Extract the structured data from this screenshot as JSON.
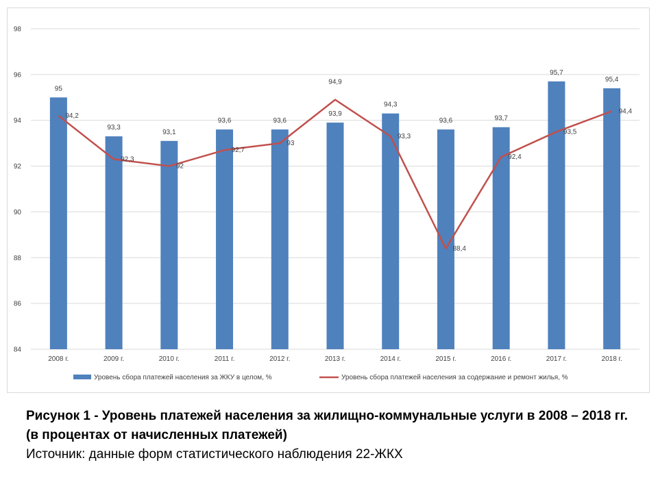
{
  "chart_data": {
    "type": "bar+line",
    "categories": [
      "2008 г.",
      "2009 г.",
      "2010 г.",
      "2011 г.",
      "2012 г.",
      "2013 г.",
      "2014 г.",
      "2015 г.",
      "2016 г.",
      "2017 г.",
      "2018 г."
    ],
    "series": [
      {
        "name": "Уровень сбора платежей населения за ЖКУ в целом, %",
        "type": "bar",
        "values": [
          95,
          93.3,
          93.1,
          93.6,
          93.6,
          93.9,
          94.3,
          93.6,
          93.7,
          95.7,
          95.4
        ],
        "labels": [
          "95",
          "93,3",
          "93,1",
          "93,6",
          "93,6",
          "93,9",
          "94,3",
          "93,6",
          "93,7",
          "95,7",
          "95,4"
        ],
        "color": "#4f81bd"
      },
      {
        "name": "Уровень сбора платежей населения за содержание и ремонт жилья, %",
        "type": "line",
        "values": [
          94.2,
          92.3,
          92,
          92.7,
          93,
          94.9,
          93.3,
          88.4,
          92.4,
          93.5,
          94.4
        ],
        "labels": [
          "94,2",
          "92,3",
          "92",
          "92,7",
          "93",
          "94,9",
          "93,3",
          "88,4",
          "92,4",
          "93,5",
          "94,4"
        ],
        "color": "#c0504d"
      }
    ],
    "ylim": [
      84,
      98
    ],
    "yticks": [
      "84",
      "86",
      "88",
      "90",
      "92",
      "94",
      "96",
      "98"
    ],
    "grid": true,
    "legend_position": "bottom"
  },
  "caption": {
    "title": "Рисунок 1 - Уровень платежей населения за жилищно-коммунальные услуги в 2008 – 2018 гг. (в процентах от начисленных платежей)",
    "source": "Источник: данные форм статистического наблюдения 22-ЖКХ"
  }
}
